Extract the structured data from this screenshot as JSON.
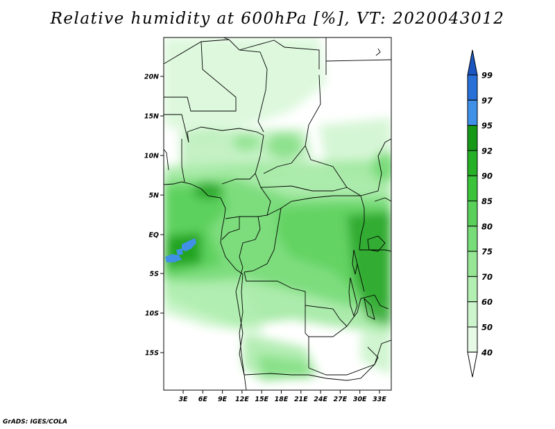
{
  "title": "Relative humidity at 600hPa [%], VT: 2020043012",
  "credit": "GrADS: IGES/COLA",
  "map": {
    "lat_labels": [
      "20N",
      "15N",
      "10N",
      "5N",
      "EQ",
      "5S",
      "10S",
      "15S"
    ],
    "lon_labels": [
      "3E",
      "6E",
      "9E",
      "12E",
      "15E",
      "18E",
      "21E",
      "24E",
      "27E",
      "30E",
      "33E"
    ]
  },
  "colorbar": {
    "levels": [
      "40",
      "50",
      "60",
      "70",
      "75",
      "80",
      "85",
      "90",
      "92",
      "95",
      "97",
      "99"
    ],
    "colors": [
      "#ffffff",
      "#e6fae6",
      "#cdf5cd",
      "#b3efb3",
      "#96e696",
      "#78dc78",
      "#5ad05a",
      "#3cc33c",
      "#26b026",
      "#179817",
      "#4090e8",
      "#2870d8",
      "#1a55c0"
    ]
  },
  "fields": {
    "humid_color": "#5ad05a",
    "very_humid_color": "#179817",
    "peak_color": "#4090e8"
  }
}
